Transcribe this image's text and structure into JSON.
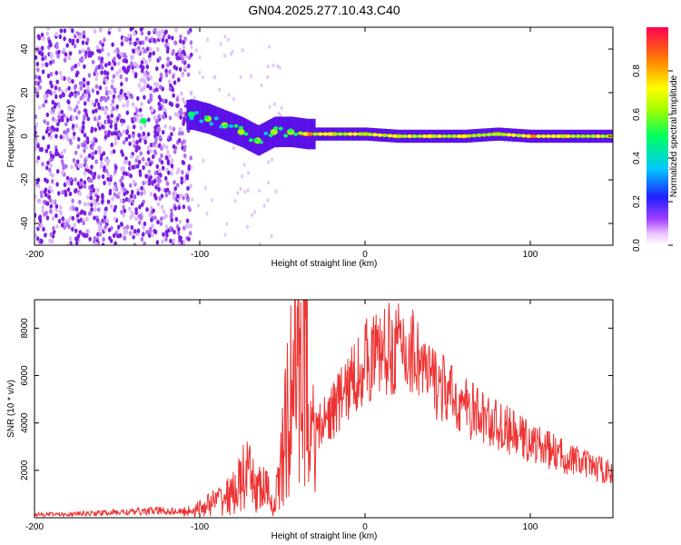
{
  "title": "GN04.2025.277.10.43.C40",
  "colors": {
    "snr_line": "#ee3333",
    "background": "#ffffff",
    "axis": "#000000",
    "scatter": "#8a2be2"
  },
  "chart_data": [
    {
      "type": "heatmap",
      "name": "spectrogram",
      "xlabel": "Height of straight line (km)",
      "ylabel": "Frequency (Hz)",
      "xlim": [
        -200,
        150
      ],
      "ylim": [
        -50,
        50
      ],
      "xticks": [
        -200,
        -100,
        0,
        100
      ],
      "yticks": [
        -40,
        -20,
        0,
        20,
        40
      ],
      "grid": false,
      "colorbar": {
        "label": "Normalized spectral amplitude",
        "range": [
          0,
          1
        ],
        "ticks": [
          0.0,
          0.2,
          0.4,
          0.6,
          0.8
        ],
        "tick_labels": [
          "0.0",
          "0.2",
          "0.4",
          "0.6",
          "0.8"
        ]
      },
      "signal_track": [
        {
          "x": -134,
          "freq": 7,
          "amp": 0.45
        },
        {
          "x": -105,
          "freq": 10,
          "amp": 0.5
        },
        {
          "x": -95,
          "freq": 8,
          "amp": 0.55
        },
        {
          "x": -85,
          "freq": 5,
          "amp": 0.55
        },
        {
          "x": -75,
          "freq": 2,
          "amp": 0.6
        },
        {
          "x": -65,
          "freq": -2,
          "amp": 0.6
        },
        {
          "x": -55,
          "freq": 2,
          "amp": 0.55
        },
        {
          "x": -45,
          "freq": 2,
          "amp": 0.6
        },
        {
          "x": -35,
          "freq": 1,
          "amp": 0.85
        },
        {
          "x": -20,
          "freq": 1,
          "amp": 0.8
        },
        {
          "x": 0,
          "freq": 1,
          "amp": 0.75
        },
        {
          "x": 20,
          "freq": 0,
          "amp": 0.8
        },
        {
          "x": 40,
          "freq": 0,
          "amp": 0.8
        },
        {
          "x": 60,
          "freq": 0,
          "amp": 0.8
        },
        {
          "x": 80,
          "freq": 1,
          "amp": 0.75
        },
        {
          "x": 100,
          "freq": 0,
          "amp": 0.9
        },
        {
          "x": 120,
          "freq": 0,
          "amp": 0.8
        },
        {
          "x": 150,
          "freq": 0,
          "amp": 0.75
        }
      ],
      "noise_region_x": [
        -200,
        -105
      ]
    },
    {
      "type": "line",
      "name": "snr",
      "xlabel": "Height of straight line (km)",
      "ylabel": "SNR (10 * v/v)",
      "xlim": [
        -200,
        150
      ],
      "ylim": [
        0,
        9200
      ],
      "xticks": [
        -200,
        -100,
        0,
        100
      ],
      "yticks": [
        2000,
        4000,
        6000,
        8000
      ],
      "grid": false,
      "series": [
        {
          "name": "SNR",
          "x": [
            -200,
            -180,
            -160,
            -140,
            -125,
            -110,
            -100,
            -90,
            -80,
            -72,
            -65,
            -60,
            -55,
            -50,
            -45,
            -41,
            -38,
            -36,
            -34,
            -32,
            -30,
            -25,
            -20,
            -10,
            0,
            10,
            20,
            25,
            30,
            35,
            38,
            40,
            45,
            50,
            60,
            80,
            100,
            120,
            135,
            150
          ],
          "values": [
            150,
            150,
            200,
            250,
            300,
            250,
            400,
            700,
            1000,
            1800,
            1200,
            1200,
            400,
            2500,
            5000,
            7500,
            6000,
            9000,
            3500,
            5000,
            3500,
            4000,
            4500,
            5500,
            6600,
            7000,
            7200,
            6900,
            7100,
            6400,
            5800,
            5900,
            5600,
            5200,
            4700,
            3900,
            3200,
            2600,
            2200,
            1900
          ]
        }
      ]
    }
  ]
}
